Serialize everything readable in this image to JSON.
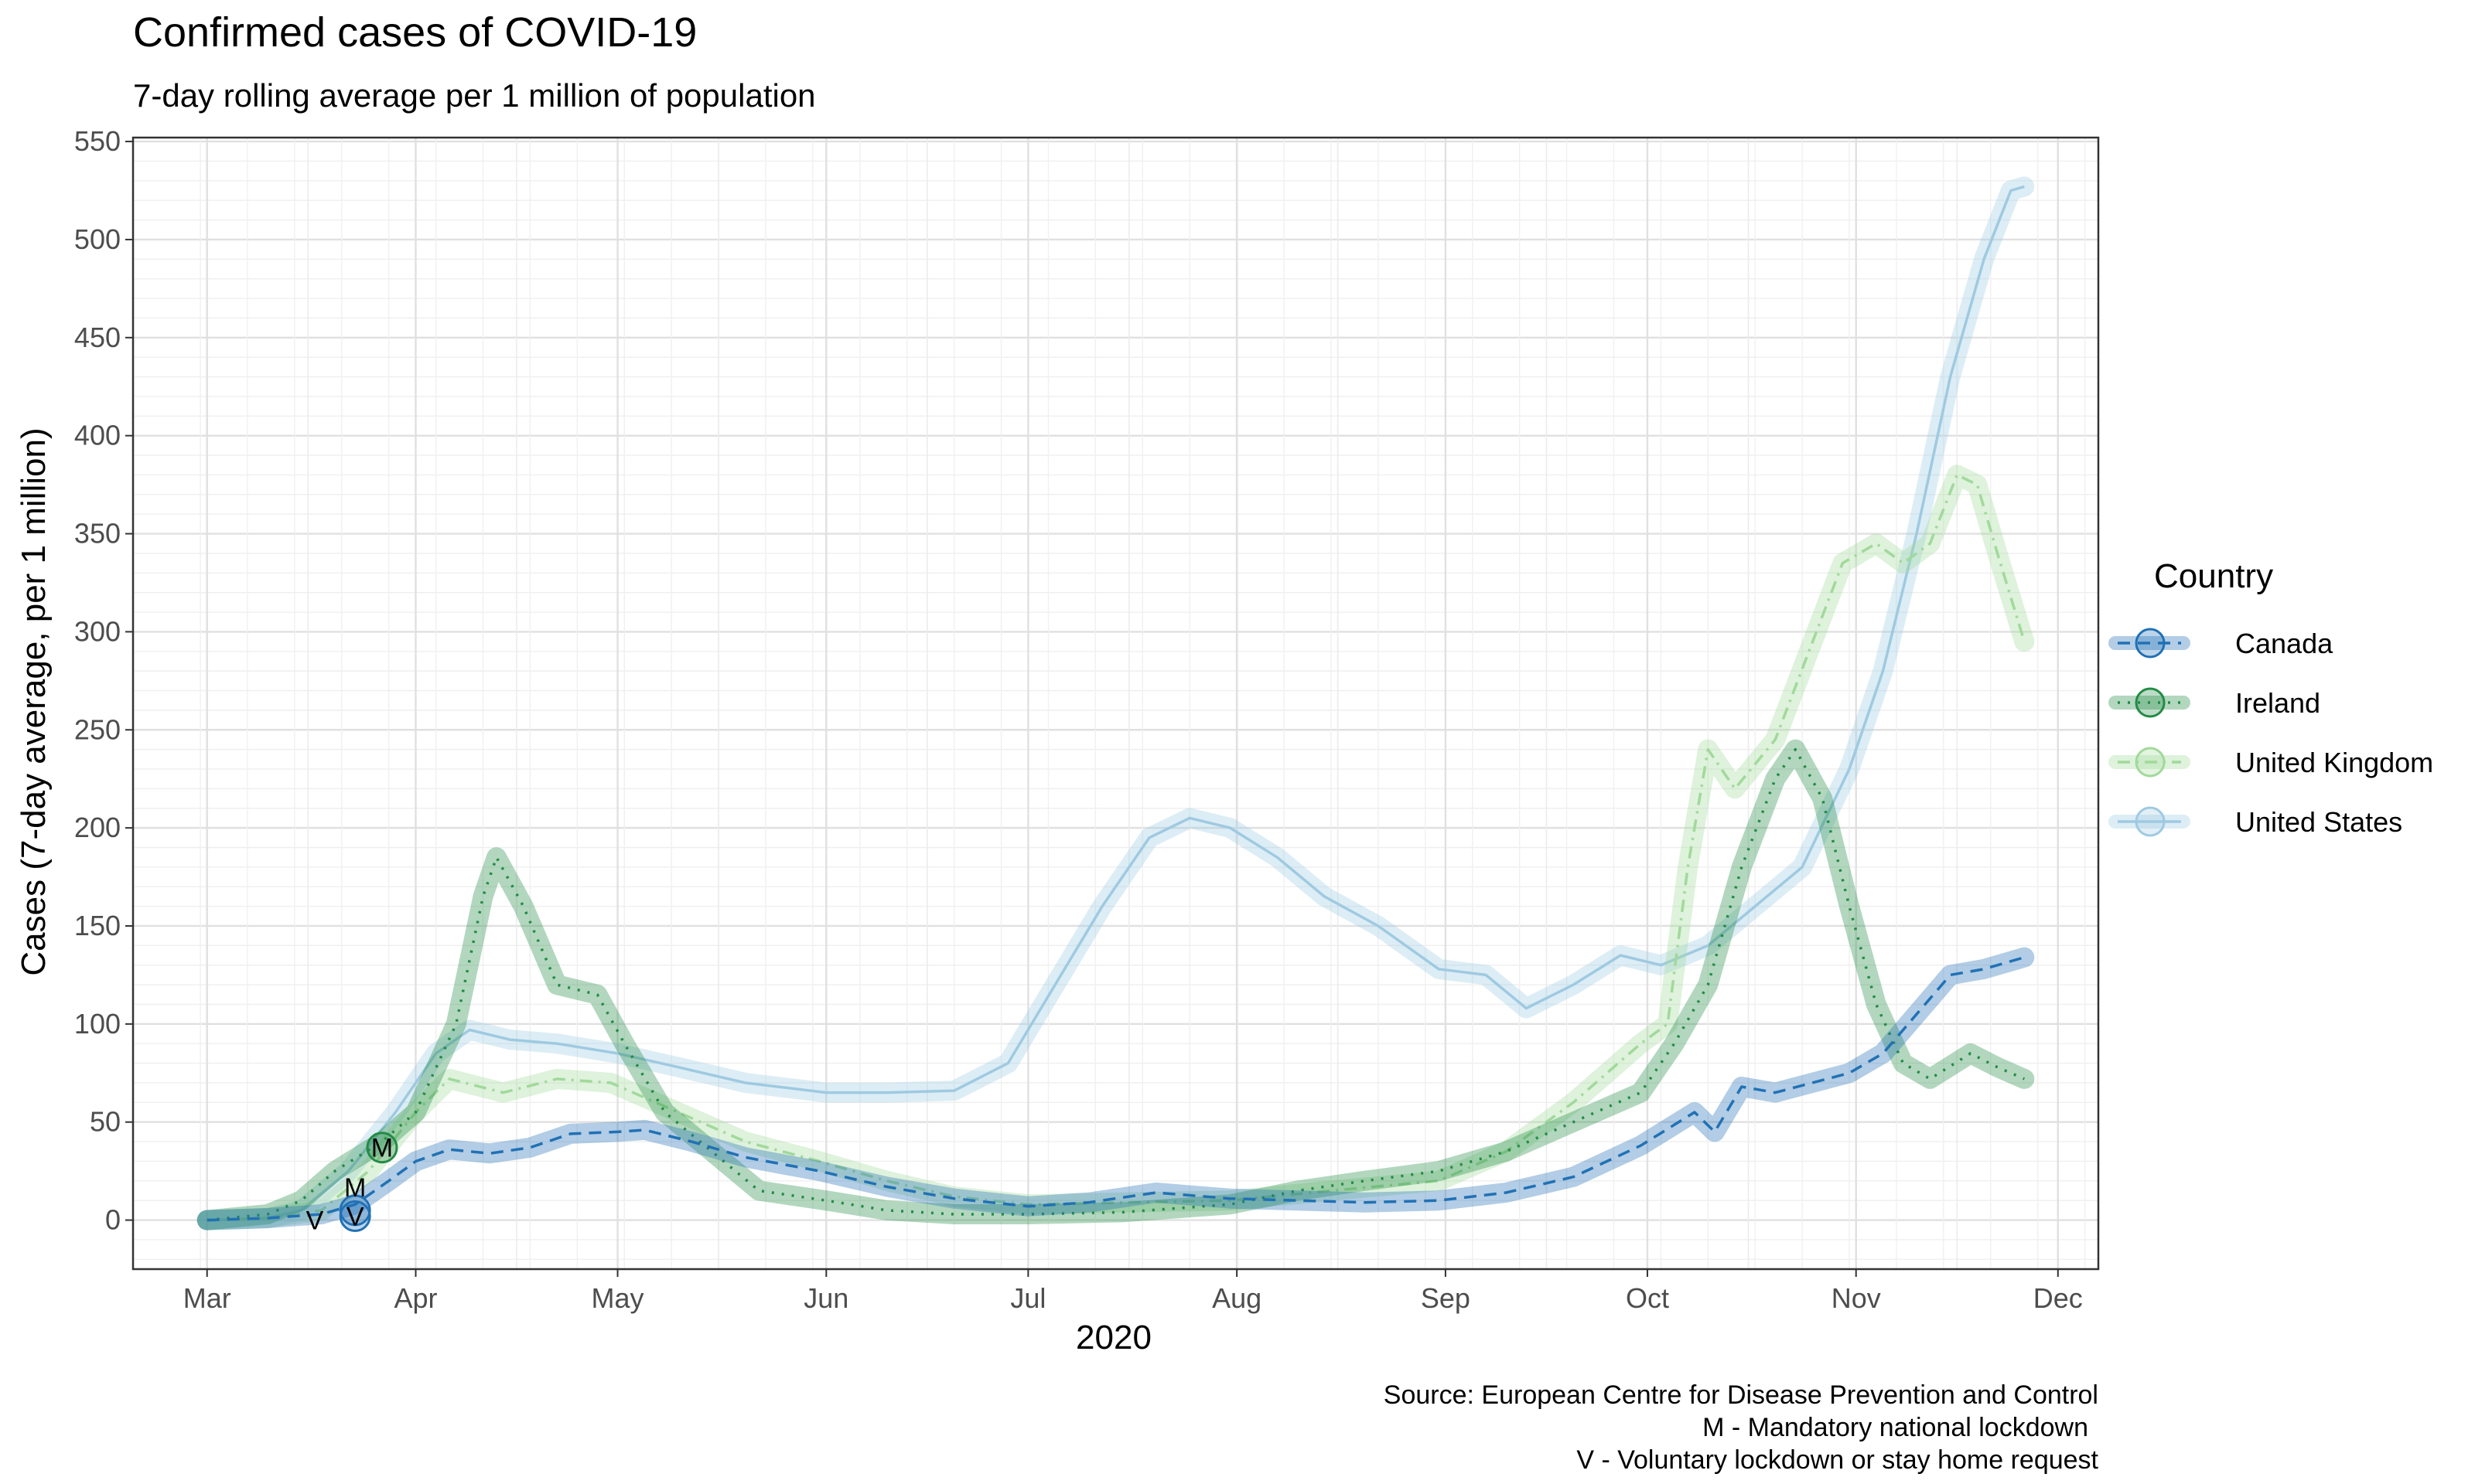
{
  "chart_data": {
    "type": "line",
    "title": "Confirmed cases of COVID-19",
    "subtitle": "7-day rolling average per 1 million of population",
    "xlabel": "2020",
    "ylabel": "Cases (7-day average, per 1 million)",
    "x_ticks": [
      "Mar",
      "Apr",
      "May",
      "Jun",
      "Jul",
      "Aug",
      "Sep",
      "Oct",
      "Nov",
      "Dec"
    ],
    "x_tick_dates": [
      "2020-03-01",
      "2020-04-01",
      "2020-05-01",
      "2020-06-01",
      "2020-07-01",
      "2020-08-01",
      "2020-09-01",
      "2020-10-01",
      "2020-11-01",
      "2020-12-01"
    ],
    "y_ticks": [
      0,
      50,
      100,
      150,
      200,
      250,
      300,
      350,
      400,
      450,
      500,
      550
    ],
    "xlim": [
      "2020-02-19",
      "2020-12-07"
    ],
    "ylim": [
      -25,
      552
    ],
    "grid": true,
    "legend": {
      "title": "Country",
      "position": "right"
    },
    "caption": [
      "Source: European Centre for Disease Prevention and Control",
      "M - Mandatory national lockdown",
      "V - Voluntary lockdown or stay home request"
    ],
    "series": [
      {
        "name": "Canada",
        "color": "#2171b5",
        "line_style": "dashed",
        "points": [
          [
            "2020-03-01",
            0
          ],
          [
            "2020-03-10",
            1
          ],
          [
            "2020-03-18",
            3
          ],
          [
            "2020-03-23",
            8
          ],
          [
            "2020-03-28",
            20
          ],
          [
            "2020-04-01",
            30
          ],
          [
            "2020-04-06",
            36
          ],
          [
            "2020-04-12",
            34
          ],
          [
            "2020-04-18",
            37
          ],
          [
            "2020-04-24",
            44
          ],
          [
            "2020-05-01",
            45
          ],
          [
            "2020-05-05",
            46
          ],
          [
            "2020-05-12",
            40
          ],
          [
            "2020-05-20",
            32
          ],
          [
            "2020-05-31",
            25
          ],
          [
            "2020-06-10",
            17
          ],
          [
            "2020-06-20",
            11
          ],
          [
            "2020-07-01",
            7
          ],
          [
            "2020-07-10",
            9
          ],
          [
            "2020-07-20",
            14
          ],
          [
            "2020-07-31",
            11
          ],
          [
            "2020-08-10",
            10
          ],
          [
            "2020-08-20",
            9
          ],
          [
            "2020-08-31",
            10
          ],
          [
            "2020-09-10",
            14
          ],
          [
            "2020-09-20",
            22
          ],
          [
            "2020-09-30",
            38
          ],
          [
            "2020-10-08",
            55
          ],
          [
            "2020-10-11",
            45
          ],
          [
            "2020-10-15",
            68
          ],
          [
            "2020-10-20",
            65
          ],
          [
            "2020-10-31",
            75
          ],
          [
            "2020-11-05",
            85
          ],
          [
            "2020-11-10",
            105
          ],
          [
            "2020-11-15",
            125
          ],
          [
            "2020-11-20",
            128
          ],
          [
            "2020-11-26",
            134
          ]
        ]
      },
      {
        "name": "Ireland",
        "color": "#238b45",
        "line_style": "dotted",
        "points": [
          [
            "2020-03-01",
            0
          ],
          [
            "2020-03-10",
            3
          ],
          [
            "2020-03-15",
            10
          ],
          [
            "2020-03-20",
            25
          ],
          [
            "2020-03-27",
            40
          ],
          [
            "2020-04-01",
            55
          ],
          [
            "2020-04-07",
            100
          ],
          [
            "2020-04-11",
            165
          ],
          [
            "2020-04-13",
            185
          ],
          [
            "2020-04-17",
            160
          ],
          [
            "2020-04-22",
            120
          ],
          [
            "2020-04-28",
            115
          ],
          [
            "2020-05-02",
            90
          ],
          [
            "2020-05-08",
            55
          ],
          [
            "2020-05-15",
            35
          ],
          [
            "2020-05-22",
            15
          ],
          [
            "2020-06-01",
            10
          ],
          [
            "2020-06-10",
            5
          ],
          [
            "2020-06-20",
            3
          ],
          [
            "2020-07-01",
            3
          ],
          [
            "2020-07-15",
            4
          ],
          [
            "2020-07-31",
            8
          ],
          [
            "2020-08-10",
            15
          ],
          [
            "2020-08-20",
            20
          ],
          [
            "2020-08-31",
            25
          ],
          [
            "2020-09-10",
            35
          ],
          [
            "2020-09-20",
            50
          ],
          [
            "2020-09-30",
            65
          ],
          [
            "2020-10-05",
            90
          ],
          [
            "2020-10-10",
            120
          ],
          [
            "2020-10-15",
            180
          ],
          [
            "2020-10-20",
            225
          ],
          [
            "2020-10-23",
            240
          ],
          [
            "2020-10-27",
            215
          ],
          [
            "2020-10-31",
            160
          ],
          [
            "2020-11-04",
            110
          ],
          [
            "2020-11-08",
            80
          ],
          [
            "2020-11-12",
            72
          ],
          [
            "2020-11-18",
            85
          ],
          [
            "2020-11-22",
            78
          ],
          [
            "2020-11-26",
            72
          ]
        ]
      },
      {
        "name": "United Kingdom",
        "color": "#a1d99b",
        "line_style": "dashdot",
        "points": [
          [
            "2020-03-01",
            0
          ],
          [
            "2020-03-10",
            1
          ],
          [
            "2020-03-18",
            5
          ],
          [
            "2020-03-25",
            25
          ],
          [
            "2020-04-01",
            55
          ],
          [
            "2020-04-06",
            72
          ],
          [
            "2020-04-14",
            65
          ],
          [
            "2020-04-22",
            72
          ],
          [
            "2020-04-30",
            70
          ],
          [
            "2020-05-10",
            55
          ],
          [
            "2020-05-20",
            40
          ],
          [
            "2020-05-31",
            30
          ],
          [
            "2020-06-10",
            20
          ],
          [
            "2020-06-20",
            12
          ],
          [
            "2020-07-01",
            8
          ],
          [
            "2020-07-15",
            9
          ],
          [
            "2020-07-31",
            10
          ],
          [
            "2020-08-15",
            15
          ],
          [
            "2020-08-31",
            20
          ],
          [
            "2020-09-10",
            35
          ],
          [
            "2020-09-20",
            60
          ],
          [
            "2020-09-30",
            90
          ],
          [
            "2020-10-04",
            100
          ],
          [
            "2020-10-07",
            180
          ],
          [
            "2020-10-10",
            240
          ],
          [
            "2020-10-14",
            220
          ],
          [
            "2020-10-20",
            245
          ],
          [
            "2020-10-25",
            290
          ],
          [
            "2020-10-30",
            335
          ],
          [
            "2020-11-04",
            345
          ],
          [
            "2020-11-08",
            335
          ],
          [
            "2020-11-12",
            345
          ],
          [
            "2020-11-16",
            380
          ],
          [
            "2020-11-19",
            375
          ],
          [
            "2020-11-22",
            340
          ],
          [
            "2020-11-26",
            295
          ]
        ]
      },
      {
        "name": "United States",
        "color": "#9ecae1",
        "line_style": "solid",
        "points": [
          [
            "2020-03-01",
            0
          ],
          [
            "2020-03-10",
            1
          ],
          [
            "2020-03-15",
            5
          ],
          [
            "2020-03-22",
            25
          ],
          [
            "2020-03-29",
            55
          ],
          [
            "2020-04-04",
            85
          ],
          [
            "2020-04-09",
            97
          ],
          [
            "2020-04-15",
            92
          ],
          [
            "2020-04-22",
            90
          ],
          [
            "2020-05-01",
            85
          ],
          [
            "2020-05-10",
            78
          ],
          [
            "2020-05-20",
            70
          ],
          [
            "2020-06-01",
            65
          ],
          [
            "2020-06-10",
            65
          ],
          [
            "2020-06-20",
            66
          ],
          [
            "2020-06-28",
            80
          ],
          [
            "2020-07-05",
            120
          ],
          [
            "2020-07-12",
            160
          ],
          [
            "2020-07-19",
            195
          ],
          [
            "2020-07-25",
            205
          ],
          [
            "2020-07-31",
            200
          ],
          [
            "2020-08-07",
            185
          ],
          [
            "2020-08-14",
            165
          ],
          [
            "2020-08-22",
            150
          ],
          [
            "2020-08-31",
            128
          ],
          [
            "2020-09-07",
            125
          ],
          [
            "2020-09-13",
            108
          ],
          [
            "2020-09-20",
            120
          ],
          [
            "2020-09-27",
            135
          ],
          [
            "2020-10-03",
            130
          ],
          [
            "2020-10-10",
            140
          ],
          [
            "2020-10-17",
            160
          ],
          [
            "2020-10-24",
            180
          ],
          [
            "2020-10-31",
            230
          ],
          [
            "2020-11-05",
            280
          ],
          [
            "2020-11-10",
            350
          ],
          [
            "2020-11-15",
            430
          ],
          [
            "2020-11-20",
            490
          ],
          [
            "2020-11-24",
            525
          ],
          [
            "2020-11-26",
            527
          ]
        ]
      }
    ],
    "annotations": [
      {
        "label": "V",
        "series": "Canada",
        "date": "2020-03-17",
        "value": 0
      },
      {
        "label": "M",
        "series": "Canada",
        "date": "2020-03-23",
        "value": 5
      },
      {
        "label": "V",
        "series": "Canada",
        "date": "2020-03-23",
        "value": 2
      },
      {
        "label": "M",
        "series": "Ireland",
        "date": "2020-03-27",
        "value": 37
      }
    ]
  }
}
